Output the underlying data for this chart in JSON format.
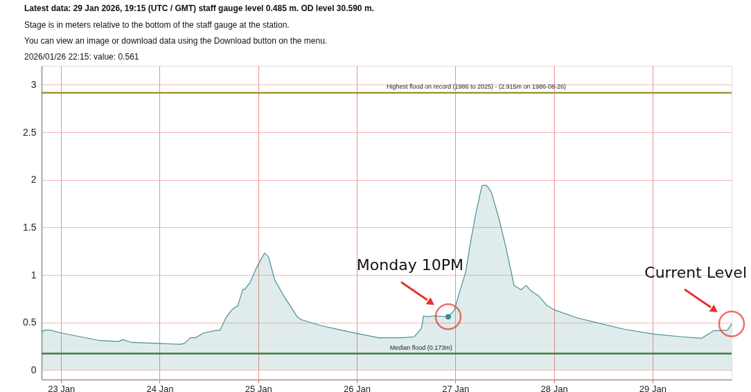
{
  "chart_data": {
    "type": "area",
    "title": "Latest data: 29 Jan 2026, 19:15 (UTC / GMT) staff gauge level 0.485 m. OD level 30.590 m.",
    "subtitle": [
      "Stage is in meters relative to the bottom of the staff gauge at the station.",
      "You can view an image or download data using the Download button on the menu."
    ],
    "series": [
      {
        "color": "#4a8f8f",
        "x": [
          "2026-01-22T19:15",
          "2026-01-22T20:00",
          "2026-01-22T21:15",
          "2026-01-23T00:00",
          "2026-01-23T09:30",
          "2026-01-23T14:00",
          "2026-01-23T15:00",
          "2026-01-23T17:15",
          "2026-01-24T00:00",
          "2026-01-24T05:00",
          "2026-01-24T06:00",
          "2026-01-24T07:30",
          "2026-01-24T08:45",
          "2026-01-24T10:45",
          "2026-01-24T13:30",
          "2026-01-24T14:45",
          "2026-01-24T16:00",
          "2026-01-24T17:30",
          "2026-01-24T18:45",
          "2026-01-24T19:00",
          "2026-01-24T20:15",
          "2026-01-24T20:45",
          "2026-01-24T22:00",
          "2026-01-24T23:30",
          "2026-01-25T01:30",
          "2026-01-25T02:30",
          "2026-01-25T04:00",
          "2026-01-25T06:30",
          "2026-01-25T09:30",
          "2026-01-25T10:30",
          "2026-01-25T15:00",
          "2026-01-25T20:45",
          "2026-01-26T00:00",
          "2026-01-26T05:15",
          "2026-01-26T10:45",
          "2026-01-26T14:00",
          "2026-01-26T15:15",
          "2026-01-26T15:45",
          "2026-01-26T16:15",
          "2026-01-26T17:00",
          "2026-01-26T18:45",
          "2026-01-26T22:15",
          "2026-01-26T23:45",
          "2026-01-27T00:45",
          "2026-01-27T02:30",
          "2026-01-27T03:45",
          "2026-01-27T05:00",
          "2026-01-27T06:00",
          "2026-01-27T06:30",
          "2026-01-27T07:30",
          "2026-01-27T08:00",
          "2026-01-27T08:45",
          "2026-01-27T10:30",
          "2026-01-27T12:15",
          "2026-01-27T13:15",
          "2026-01-27T14:00",
          "2026-01-27T14:15",
          "2026-01-27T16:00",
          "2026-01-27T17:15",
          "2026-01-27T18:30",
          "2026-01-27T20:15",
          "2026-01-27T22:15",
          "2026-01-28T00:00",
          "2026-01-28T05:30",
          "2026-01-28T10:15",
          "2026-01-28T17:00",
          "2026-01-29T00:00",
          "2026-01-29T07:00",
          "2026-01-29T12:00",
          "2026-01-29T13:15",
          "2026-01-29T15:00",
          "2026-01-29T16:00",
          "2026-01-29T18:15",
          "2026-01-29T19:15"
        ],
        "values": [
          0.4,
          0.42,
          0.42,
          0.39,
          0.31,
          0.3,
          0.32,
          0.29,
          0.28,
          0.27,
          0.28,
          0.34,
          0.34,
          0.39,
          0.415,
          0.42,
          0.54,
          0.63,
          0.67,
          0.67,
          0.85,
          0.85,
          0.92,
          1.07,
          1.23,
          1.19,
          0.95,
          0.76,
          0.56,
          0.53,
          0.47,
          0.415,
          0.385,
          0.34,
          0.34,
          0.35,
          0.415,
          0.44,
          0.57,
          0.56,
          0.57,
          0.561,
          0.63,
          0.78,
          1.03,
          1.36,
          1.65,
          1.85,
          1.94,
          1.945,
          1.92,
          1.87,
          1.61,
          1.3,
          1.1,
          0.95,
          0.89,
          0.845,
          0.89,
          0.83,
          0.78,
          0.68,
          0.635,
          0.55,
          0.5,
          0.43,
          0.38,
          0.35,
          0.335,
          0.37,
          0.415,
          0.415,
          0.42,
          0.485
        ]
      },
      {
        "type": "scatter",
        "color": "#3d8585",
        "x": [
          "2026-01-26T22:15"
        ],
        "values": [
          0.561
        ]
      }
    ],
    "xlim": [
      "2026-01-22T19:15",
      "2026-01-29T19:15"
    ],
    "xticks": [
      {
        "value": "2026-01-23",
        "label": "23 Jan"
      },
      {
        "value": "2026-01-24",
        "label": "24 Jan"
      },
      {
        "value": "2026-01-25",
        "label": "25 Jan"
      },
      {
        "value": "2026-01-26",
        "label": "26 Jan"
      },
      {
        "value": "2026-01-27",
        "label": "27 Jan"
      },
      {
        "value": "2026-01-28",
        "label": "28 Jan"
      },
      {
        "value": "2026-01-29",
        "label": "29 Jan"
      }
    ],
    "ylim": [
      -0.1,
      3.2
    ],
    "yticks": [
      0,
      0.5,
      1,
      1.5,
      2,
      2.5,
      3
    ],
    "grid": true,
    "ref_lines": [
      {
        "axis": "y",
        "value": 2.915,
        "label": "Highest flood on record (1986 to 2025) - (2.915m on 1986-08-26)",
        "color": "#999933"
      },
      {
        "axis": "y",
        "value": 0.173,
        "label": "Median flood (0.173m)",
        "color": "#3d7a3d"
      }
    ],
    "annotations": [
      "2026/01/26 22:15: value: 0.561",
      {
        "text": "Monday 10PM",
        "x": "2026-01-26T22:15",
        "y": 0.561
      },
      {
        "text": "Current Level",
        "x": "2026-01-29T19:15",
        "y": 0.485
      }
    ]
  }
}
